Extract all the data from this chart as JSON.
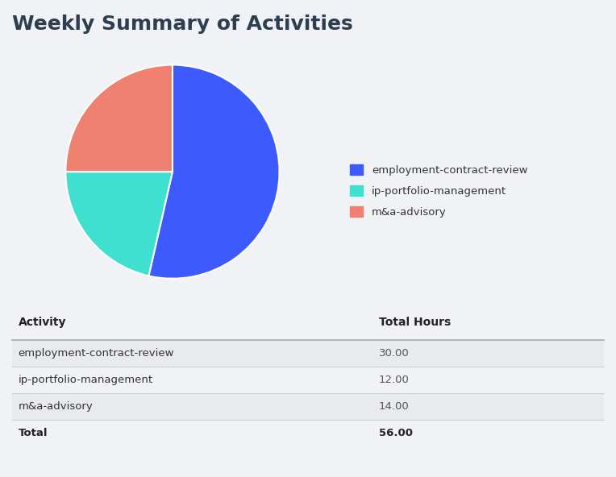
{
  "title": "Weekly Summary of Activities",
  "title_color": "#2c3e50",
  "background_color": "#f0f2f5",
  "pie_data": [
    30,
    12,
    14
  ],
  "pie_labels": [
    "employment-contract-review",
    "ip-portfolio-management",
    "m&a-advisory"
  ],
  "pie_colors": [
    "#3d5afe",
    "#40e0d0",
    "#f08070"
  ],
  "table_headers": [
    "Activity",
    "Total Hours"
  ],
  "table_rows": [
    [
      "employment-contract-review",
      "30.00"
    ],
    [
      "ip-portfolio-management",
      "12.00"
    ],
    [
      "m&a-advisory",
      "14.00"
    ]
  ],
  "table_total": [
    "Total",
    "56.00"
  ],
  "legend_labels": [
    "employment-contract-review",
    "ip-portfolio-management",
    "m&a-advisory"
  ],
  "legend_colors": [
    "#3d5afe",
    "#40e0d0",
    "#f08070"
  ]
}
